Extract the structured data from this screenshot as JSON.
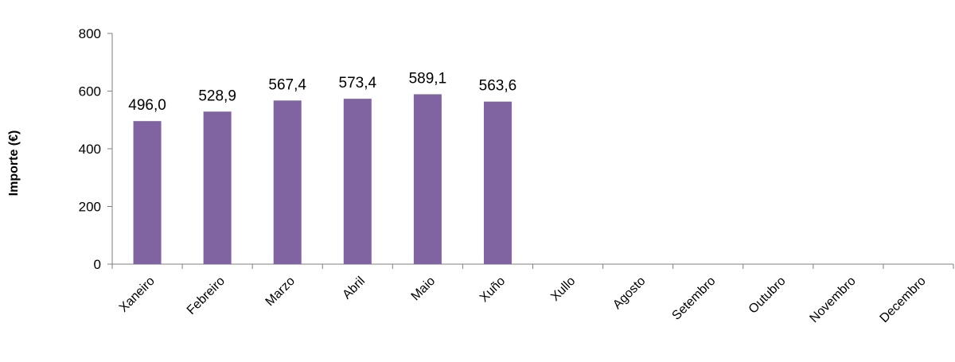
{
  "chart_data": {
    "type": "bar",
    "categories": [
      "Xaneiro",
      "Febreiro",
      "Marzo",
      "Abril",
      "Maio",
      "Xuño",
      "Xullo",
      "Agosto",
      "Setembro",
      "Outubro",
      "Novembro",
      "Decembro"
    ],
    "series": [
      {
        "values": [
          496.0,
          528.9,
          567.4,
          573.4,
          589.1,
          563.6,
          null,
          null,
          null,
          null,
          null,
          null
        ],
        "data_labels": [
          "496,0",
          "528,9",
          "567,4",
          "573,4",
          "589,1",
          "563,6",
          "",
          "",
          "",
          "",
          "",
          ""
        ]
      }
    ],
    "title": "",
    "xlabel": "",
    "ylabel": "Importe (€)",
    "ylim": [
      0,
      800
    ],
    "yticks": [
      0,
      200,
      400,
      600,
      800
    ],
    "ytick_labels": [
      "0",
      "200",
      "400",
      "600",
      "800"
    ],
    "grid": false,
    "legend": "none",
    "colors": {
      "bar": "#8064a2",
      "axis": "#7f7f7f",
      "text": "#000000"
    }
  }
}
